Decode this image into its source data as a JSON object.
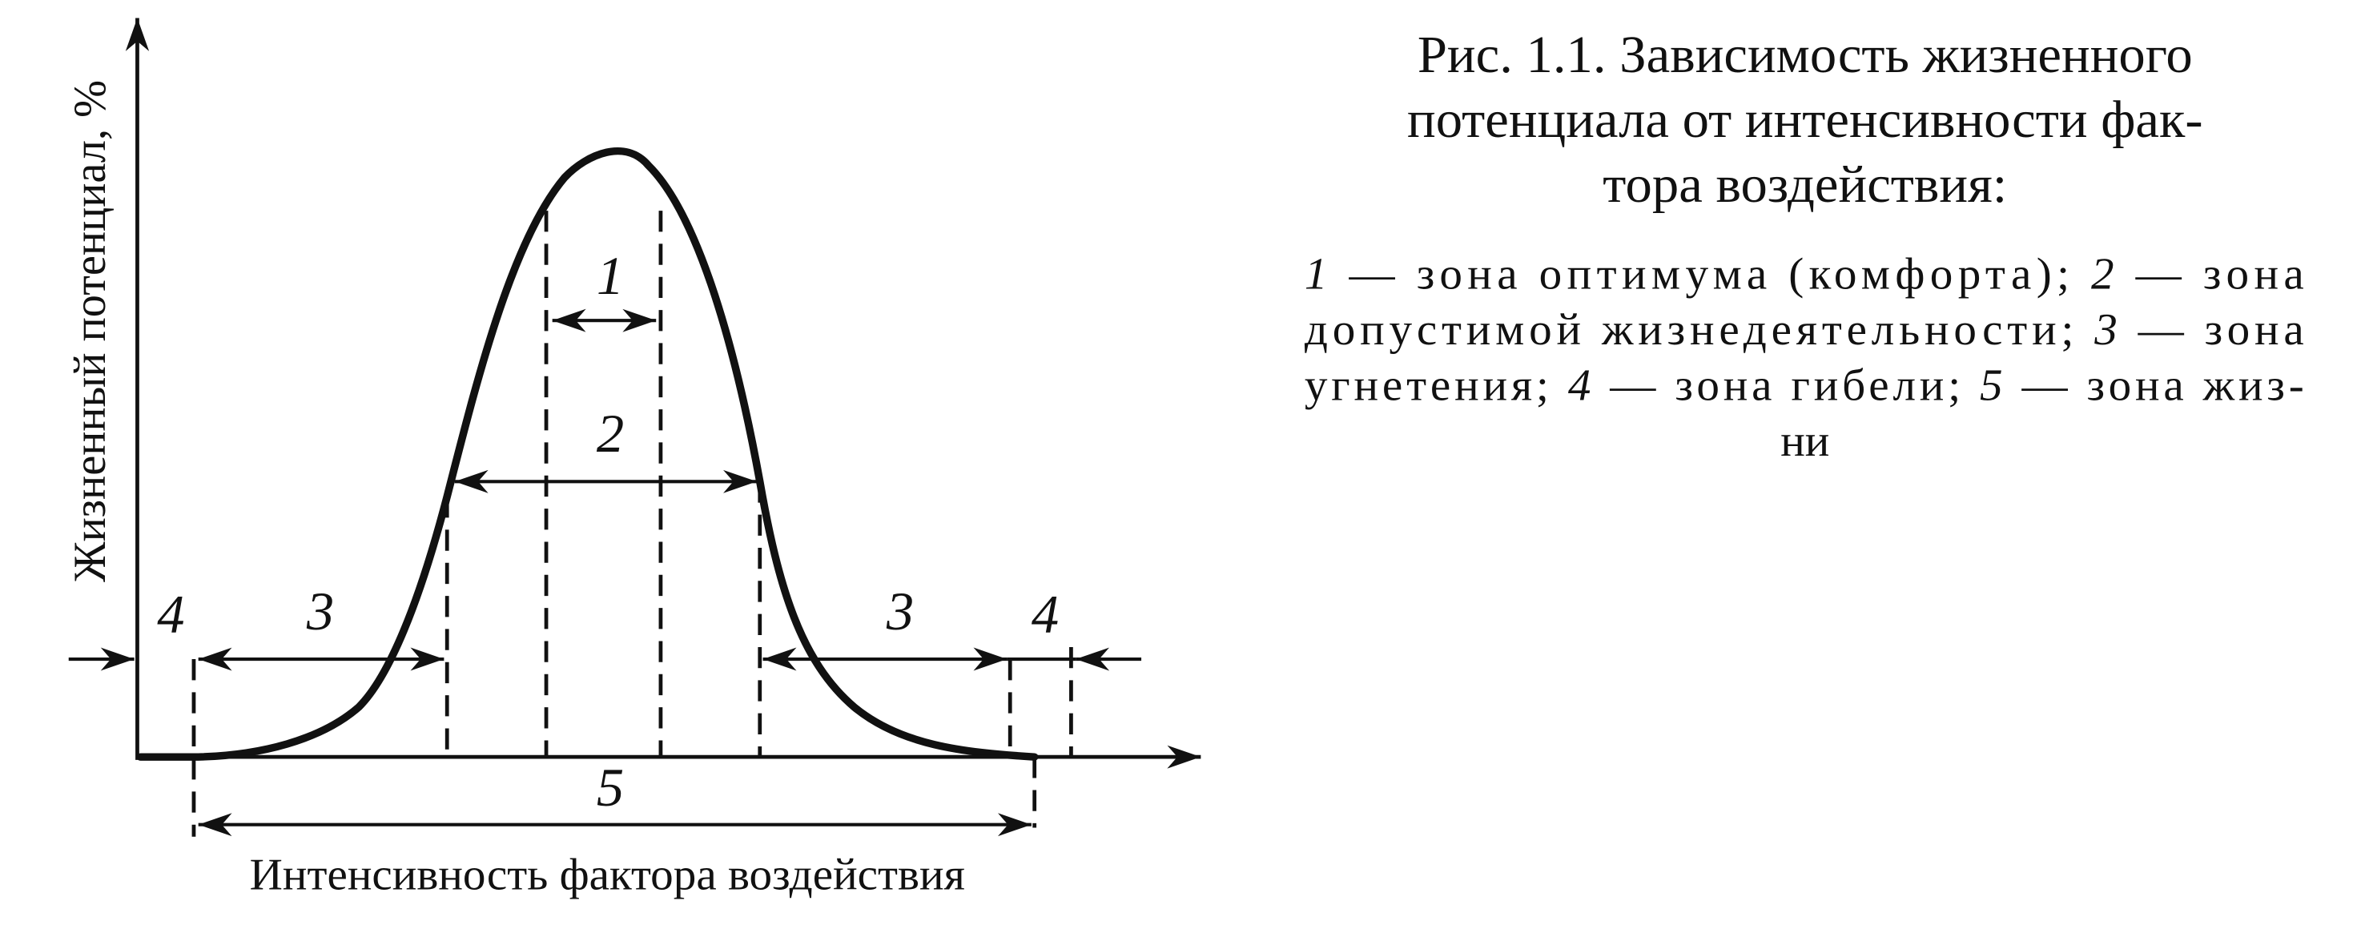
{
  "figure": {
    "y_axis_label": "Жизненный потенциал, %",
    "x_axis_label": "Интенсивность фактора воздействия",
    "zone_labels": [
      "4",
      "3",
      "1",
      "2",
      "3",
      "4",
      "5"
    ]
  },
  "caption": {
    "title_lines": [
      "Рис. 1.1. Зависимость жизненного",
      "потенциала от интенсивности фак-",
      "тора воздействия:"
    ],
    "legend_lines": [
      [
        {
          "text": "1",
          "italic": true
        },
        {
          "text": " — зона оптимума (комфорта); "
        },
        {
          "text": "2",
          "italic": true
        },
        {
          "text": " — зона"
        }
      ],
      [
        {
          "text": "допустимой жизнедеятельности; "
        },
        {
          "text": "3",
          "italic": true
        },
        {
          "text": " — зона"
        }
      ],
      [
        {
          "text": "угнетения; "
        },
        {
          "text": "4",
          "italic": true
        },
        {
          "text": " — зона гибели; "
        },
        {
          "text": "5",
          "italic": true
        },
        {
          "text": " — зона жиз-"
        }
      ],
      [
        {
          "text": "ни"
        }
      ]
    ]
  }
}
